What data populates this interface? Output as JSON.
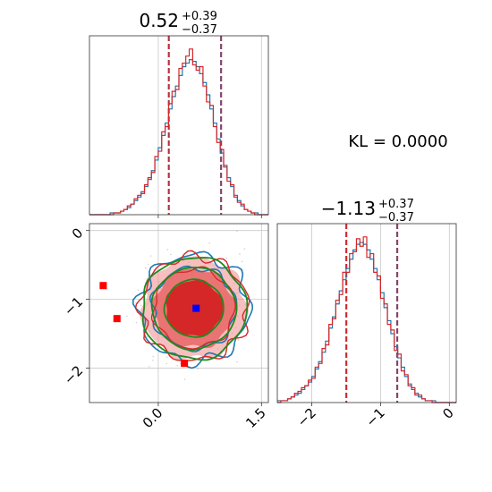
{
  "kl_text": "KL = 0.0000",
  "colors": {
    "red": "#d62728",
    "blue": "#1f77b4",
    "green": "#1e8a1e",
    "pink": "#f08a8a",
    "grid": "#c8c8c8"
  },
  "chart_data": [
    {
      "type": "histogram",
      "title": "0.52",
      "title_sup": "+0.39",
      "title_sub": "−0.37",
      "xlim": [
        -1.0,
        1.6
      ],
      "median": 0.52,
      "quantiles": [
        0.15,
        0.91
      ],
      "series": [
        {
          "color": "#1f77b4",
          "bin_start": -1.0,
          "bin_width": 0.05,
          "counts": [
            0,
            0,
            0,
            0,
            0,
            0,
            1,
            1,
            1,
            2,
            3,
            4,
            6,
            8,
            10,
            13,
            16,
            20,
            25,
            31,
            38,
            45,
            52,
            60,
            67,
            73,
            79,
            84,
            86,
            88,
            87,
            84,
            80,
            75,
            68,
            60,
            52,
            43,
            35,
            28,
            21,
            16,
            11,
            8,
            5,
            3,
            2,
            1,
            1,
            0,
            0,
            0
          ]
        },
        {
          "color": "#d62728",
          "bin_start": -1.0,
          "bin_width": 0.05,
          "counts": [
            0,
            0,
            0,
            0,
            0,
            0,
            0,
            1,
            1,
            2,
            3,
            5,
            6,
            9,
            11,
            12,
            17,
            21,
            24,
            33,
            36,
            47,
            50,
            63,
            70,
            71,
            83,
            86,
            90,
            94,
            85,
            82,
            84,
            73,
            64,
            62,
            50,
            41,
            37,
            27,
            19,
            17,
            10,
            7,
            6,
            3,
            2,
            1,
            0,
            0,
            0,
            0
          ]
        }
      ]
    },
    {
      "type": "histogram",
      "title": "−1.13",
      "title_sup": "+0.37",
      "title_sub": "−0.37",
      "xlim": [
        -2.5,
        0.1
      ],
      "ticks": [
        "−2",
        "−1",
        "0"
      ],
      "median": -1.13,
      "quantiles": [
        -1.5,
        -0.76
      ],
      "series": [
        {
          "color": "#1f77b4",
          "bin_start": -2.5,
          "bin_width": 0.05,
          "counts": [
            1,
            1,
            1,
            2,
            3,
            4,
            5,
            7,
            9,
            11,
            14,
            18,
            22,
            27,
            33,
            40,
            46,
            53,
            60,
            66,
            72,
            77,
            82,
            85,
            86,
            85,
            82,
            77,
            72,
            66,
            59,
            51,
            44,
            37,
            30,
            24,
            19,
            14,
            10,
            7,
            5,
            3,
            2,
            1,
            1,
            1,
            0,
            0,
            0,
            0,
            0,
            0
          ]
        },
        {
          "color": "#d62728",
          "bin_start": -2.5,
          "bin_width": 0.05,
          "counts": [
            0,
            1,
            1,
            2,
            3,
            5,
            6,
            8,
            9,
            12,
            13,
            19,
            21,
            29,
            31,
            42,
            45,
            55,
            58,
            70,
            70,
            80,
            81,
            88,
            84,
            89,
            78,
            80,
            70,
            68,
            56,
            53,
            42,
            39,
            28,
            26,
            17,
            15,
            9,
            8,
            4,
            4,
            2,
            1,
            1,
            0,
            0,
            0,
            0,
            0,
            0,
            0
          ]
        }
      ]
    },
    {
      "type": "contour",
      "xlim": [
        -1.0,
        1.6
      ],
      "ylim": [
        -2.5,
        0.1
      ],
      "xticks": [
        "0.0",
        "1.5"
      ],
      "yticks": [
        "0",
        "−1",
        "−2"
      ],
      "center": [
        0.52,
        -1.13
      ],
      "sigma": [
        0.38,
        0.37
      ],
      "truth_marker": {
        "x": 0.55,
        "y": -1.13,
        "color": "#0000ff"
      },
      "extra_markers": [
        {
          "x": -0.8,
          "y": -0.8,
          "color": "#ff0000"
        },
        {
          "x": -0.6,
          "y": -1.28,
          "color": "#ff0000"
        },
        {
          "x": 0.38,
          "y": -1.93,
          "color": "#ff0000"
        }
      ]
    }
  ]
}
